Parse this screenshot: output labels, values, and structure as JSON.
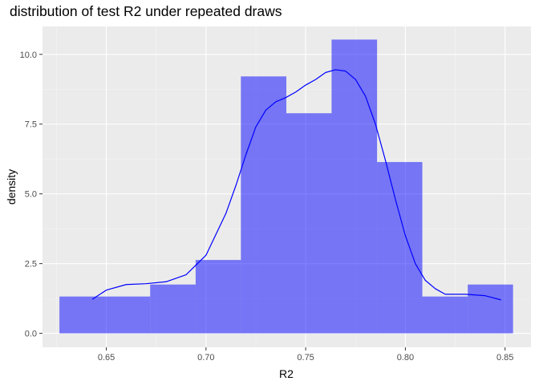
{
  "chart_data": {
    "type": "bar",
    "subtype": "histogram with density curve",
    "title": "distribution of test R2 under repeated draws",
    "xlabel": "R2",
    "ylabel": "density",
    "xlim": [
      0.618,
      0.863
    ],
    "ylim": [
      -0.5,
      11.0
    ],
    "x_ticks": [
      0.65,
      0.7,
      0.75,
      0.8,
      0.85
    ],
    "x_tick_labels": [
      "0.65",
      "0.70",
      "0.75",
      "0.80",
      "0.85"
    ],
    "y_ticks": [
      0,
      2.5,
      5,
      7.5,
      10
    ],
    "y_tick_labels": [
      "0.0",
      "2.5",
      "5.0",
      "7.5",
      "10.0"
    ],
    "grid": true,
    "bins": [
      {
        "x0": 0.6265,
        "x1": 0.672,
        "density": 1.32
      },
      {
        "x0": 0.672,
        "x1": 0.6948,
        "density": 1.75
      },
      {
        "x0": 0.6948,
        "x1": 0.7175,
        "density": 2.63
      },
      {
        "x0": 0.7175,
        "x1": 0.7403,
        "density": 9.21
      },
      {
        "x0": 0.7403,
        "x1": 0.763,
        "density": 7.89
      },
      {
        "x0": 0.763,
        "x1": 0.7858,
        "density": 10.53
      },
      {
        "x0": 0.7858,
        "x1": 0.8085,
        "density": 6.14
      },
      {
        "x0": 0.8085,
        "x1": 0.8313,
        "density": 1.32
      },
      {
        "x0": 0.8313,
        "x1": 0.854,
        "density": 1.75
      }
    ],
    "density_curve": {
      "x": [
        0.643,
        0.65,
        0.66,
        0.67,
        0.68,
        0.69,
        0.7,
        0.71,
        0.715,
        0.72,
        0.725,
        0.73,
        0.735,
        0.74,
        0.745,
        0.75,
        0.755,
        0.76,
        0.765,
        0.77,
        0.775,
        0.78,
        0.785,
        0.79,
        0.795,
        0.8,
        0.805,
        0.81,
        0.815,
        0.82,
        0.83,
        0.84,
        0.848
      ],
      "y": [
        1.22,
        1.55,
        1.75,
        1.78,
        1.85,
        2.1,
        2.8,
        4.3,
        5.3,
        6.4,
        7.4,
        8.0,
        8.3,
        8.45,
        8.65,
        8.9,
        9.1,
        9.35,
        9.45,
        9.4,
        9.1,
        8.5,
        7.5,
        6.2,
        4.8,
        3.5,
        2.5,
        1.9,
        1.6,
        1.4,
        1.4,
        1.35,
        1.2
      ]
    },
    "colors": {
      "bar_fill": "#0000ff",
      "bar_opacity": 0.5,
      "curve": "#0000ff",
      "panel_background": "#ebebeb",
      "grid_major": "#ffffff",
      "grid_minor": "#f5f5f5"
    }
  }
}
